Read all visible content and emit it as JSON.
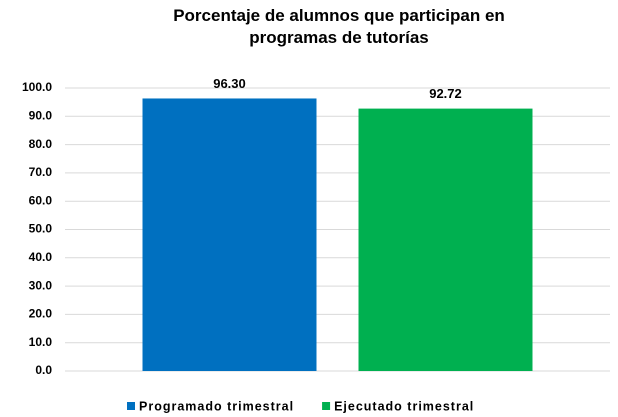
{
  "chart_data": {
    "type": "bar",
    "title": "Porcentaje de alumnos que participan en programas de tutorías",
    "categories": [
      null
    ],
    "series": [
      {
        "name": "Programado trimestral",
        "color": "#0070c0",
        "values": [
          96.3
        ],
        "value_labels": [
          "96.30"
        ]
      },
      {
        "name": "Ejecutado trimestral",
        "color": "#00b050",
        "values": [
          92.72
        ],
        "value_labels": [
          "92.72"
        ]
      }
    ],
    "ylim": [
      0,
      100
    ],
    "yticks": [
      {
        "value": 0,
        "label": "0.0"
      },
      {
        "value": 10,
        "label": "10.0"
      },
      {
        "value": 20,
        "label": "20.0"
      },
      {
        "value": 30,
        "label": "30.0"
      },
      {
        "value": 40,
        "label": "40.0"
      },
      {
        "value": 50,
        "label": "50.0"
      },
      {
        "value": 60,
        "label": "60.0"
      },
      {
        "value": 70,
        "label": "70.0"
      },
      {
        "value": 80,
        "label": "80.0"
      },
      {
        "value": 90,
        "label": "90.0"
      },
      {
        "value": 100,
        "label": "100.0"
      }
    ],
    "grid": true,
    "legend": "bottom"
  }
}
